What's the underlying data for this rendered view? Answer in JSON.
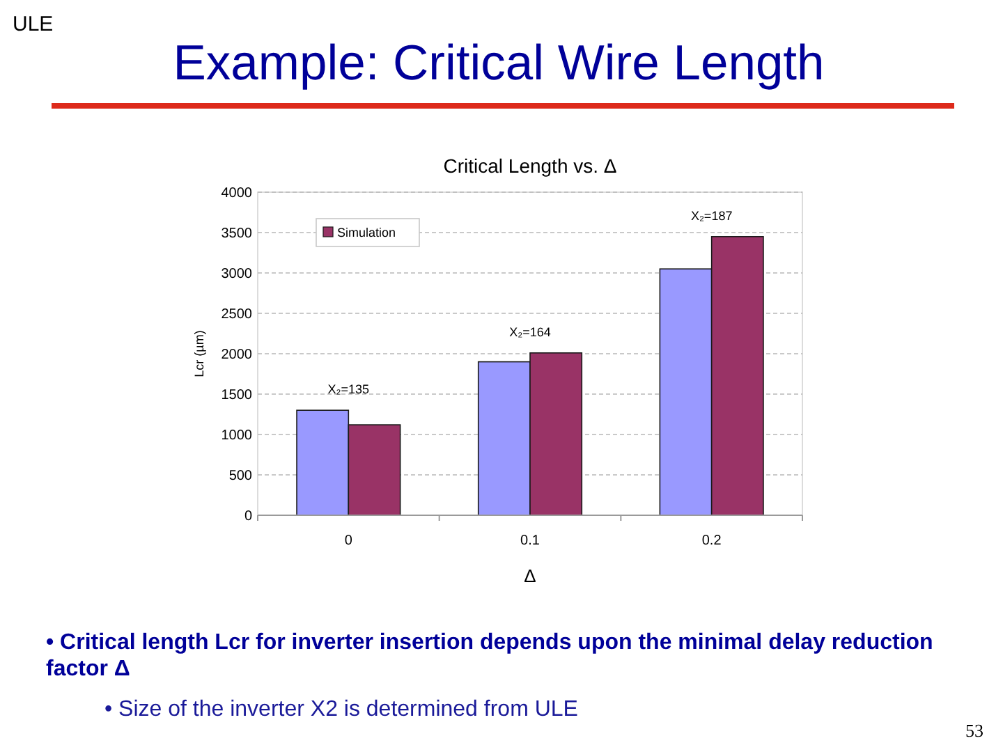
{
  "chart_data": {
    "type": "bar",
    "title": "Example: Critical Wire Length",
    "subtitle": "Critical Length vs. Δ",
    "xlabel": "Δ",
    "ylabel": "Lcr (µm)",
    "categories": [
      "0",
      "0.1",
      "0.2"
    ],
    "series": [
      {
        "color": "#9999ff",
        "values": [
          1300,
          1900,
          3050
        ]
      },
      {
        "name": "Simulation",
        "color": "#993366",
        "values": [
          1120,
          2010,
          3450
        ]
      }
    ],
    "ylim": [
      0,
      4000
    ],
    "yticks": [
      0,
      500,
      1000,
      1500,
      2000,
      2500,
      3000,
      3500,
      4000
    ],
    "grid": "y",
    "legend": "top left",
    "annotations": [
      {
        "text": "X₂=135",
        "x": "0",
        "y": 1300
      },
      {
        "text": "X₂=164",
        "x": "0.1",
        "y": 2010
      },
      {
        "text": "X₂=187",
        "x": "0.2",
        "y": 3450
      },
      "ULE",
      "• Critical length Lcr for inverter insertion depends upon the minimal delay reduction factor Δ",
      "• Size of the inverter X2 is determined from ULE",
      "53"
    ]
  }
}
